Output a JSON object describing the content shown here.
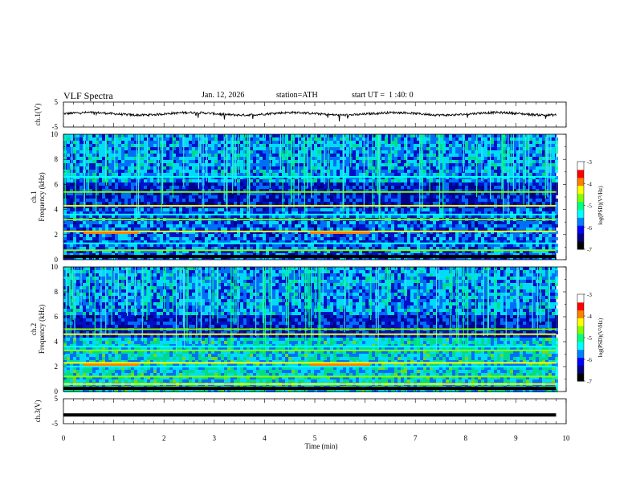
{
  "header": {
    "title": "VLF Spectra",
    "date": "Jan. 12, 2026",
    "station": "station=ATH",
    "start": "start UT =  1 :40: 0"
  },
  "chart_data": [
    {
      "type": "line",
      "id": "ch1-waveform",
      "ylabel": "ch.1(V)",
      "ylim": [
        -5,
        5
      ],
      "yticks": [
        "5",
        "-5"
      ],
      "xlim": [
        0,
        10
      ],
      "x_extent_min": 9.8,
      "baseline_v": 0.3,
      "noise_v": 0.9
    },
    {
      "type": "heatmap",
      "id": "ch1-spectrogram",
      "label_channel": "ch.1",
      "ylabel": "Frequency (kHz)",
      "ylim": [
        0,
        10
      ],
      "yticks": [
        "0",
        "2",
        "4",
        "6",
        "8",
        "10"
      ],
      "xlim": [
        0,
        10
      ],
      "x_extent_min": 9.8,
      "colorbar": {
        "label": "log(PSD)(V²/Hz)",
        "range": [
          -7,
          -3
        ],
        "ticks": [
          "-3",
          "-4",
          "-5",
          "-6",
          "-7"
        ]
      },
      "bands_khz": [
        0.3,
        0.75,
        1.3,
        2.25,
        3.2,
        3.6,
        4.3,
        5.4,
        6.6
      ],
      "colors": [
        "#000080",
        "#0000ff",
        "#0080ff",
        "#00ffff",
        "#00ff80",
        "#80ff00",
        "#ffff00",
        "#ff8000",
        "#ff0000",
        "#ffffff"
      ]
    },
    {
      "type": "heatmap",
      "id": "ch2-spectrogram",
      "label_channel": "ch.2",
      "ylabel": "Frequency (kHz)",
      "ylim": [
        0,
        10
      ],
      "yticks": [
        "0",
        "2",
        "4",
        "6",
        "8",
        "10"
      ],
      "xlim": [
        0,
        10
      ],
      "x_extent_min": 9.8,
      "colorbar": {
        "label": "log(PSD)(V²/Hz)",
        "range": [
          -7,
          -3
        ],
        "ticks": [
          "-3",
          "-4",
          "-5",
          "-6",
          "-7"
        ]
      },
      "bands_khz": [
        0.6,
        1.2,
        2.0,
        2.3,
        3.3,
        3.6,
        4.6,
        5.0
      ],
      "colors": [
        "#000080",
        "#0000ff",
        "#0080ff",
        "#00ffff",
        "#00ff80",
        "#80ff00",
        "#ffff00",
        "#ff8000",
        "#ff0000",
        "#ffffff"
      ]
    },
    {
      "type": "line",
      "id": "ch3-waveform",
      "ylabel": "ch.3(V)",
      "ylim": [
        -5,
        5
      ],
      "yticks": [
        "5",
        "-5"
      ],
      "xlim": [
        0,
        10
      ],
      "x_extent_min": 9.8,
      "level_v": -1.5,
      "xlabel": "Time (min)",
      "xticks": [
        "0",
        "1",
        "2",
        "3",
        "4",
        "5",
        "6",
        "7",
        "8",
        "9",
        "10"
      ]
    }
  ]
}
